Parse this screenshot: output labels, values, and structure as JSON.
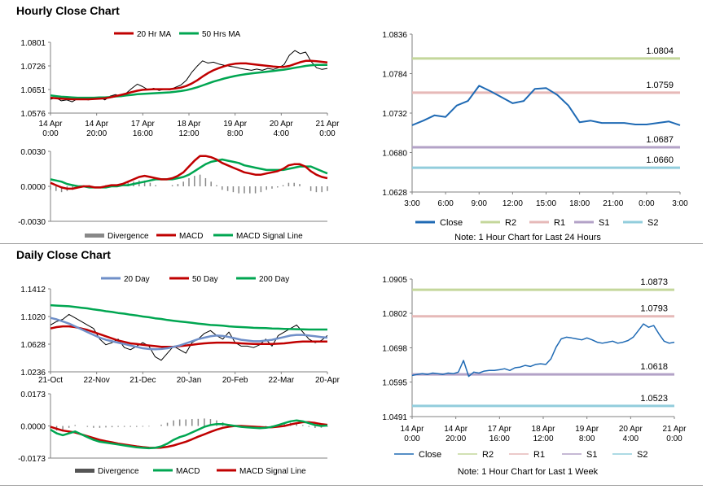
{
  "sections": {
    "hourly_title": "Hourly Close Chart",
    "daily_title": "Daily Close Chart"
  },
  "colors": {
    "ma20": "#c00000",
    "ma50": "#00a651",
    "close": "#1f6ab4",
    "r2": "#c4d79b",
    "r1": "#e6b9b8",
    "s1": "#b3a2c7",
    "s2": "#92cddc",
    "divergence": "#888888",
    "price": "#000000"
  },
  "chart_data": [
    {
      "id": "hourly-price",
      "type": "line",
      "legend": [
        "20 Hr MA",
        "50 Hrs MA"
      ],
      "x_ticks": [
        "14 Apr|0:00",
        "14 Apr|20:00",
        "17 Apr|16:00",
        "18 Apr|12:00",
        "19 Apr|8:00",
        "20 Apr|4:00",
        "21 Apr|0:00"
      ],
      "y_ticks": [
        "1.0801",
        "1.0726",
        "1.0651",
        "1.0576"
      ],
      "ylim": [
        1.0576,
        1.0801
      ],
      "price": [
        1.062,
        1.0625,
        1.0615,
        1.0618,
        1.0612,
        1.0622,
        1.062,
        1.0618,
        1.0622,
        1.0627,
        1.0618,
        1.063,
        1.0635,
        1.0628,
        1.064,
        1.0655,
        1.0668,
        1.066,
        1.065,
        1.0655,
        1.0648,
        1.0652,
        1.065,
        1.0658,
        1.0665,
        1.068,
        1.0705,
        1.0725,
        1.0742,
        1.0735,
        1.0738,
        1.0732,
        1.0728,
        1.0725,
        1.0722,
        1.0718,
        1.0715,
        1.0712,
        1.0716,
        1.0712,
        1.0718,
        1.0715,
        1.072,
        1.073,
        1.076,
        1.0775,
        1.0765,
        1.077,
        1.074,
        1.072,
        1.0715,
        1.0718
      ],
      "ma20": [
        1.0625,
        1.0623,
        1.0622,
        1.0621,
        1.062,
        1.062,
        1.062,
        1.062,
        1.0621,
        1.0622,
        1.0623,
        1.0626,
        1.063,
        1.0634,
        1.0638,
        1.0643,
        1.0647,
        1.065,
        1.0651,
        1.0652,
        1.0652,
        1.0652,
        1.0652,
        1.0654,
        1.0657,
        1.0662,
        1.067,
        1.068,
        1.0692,
        1.0703,
        1.0712,
        1.0719,
        1.0725,
        1.073,
        1.0733,
        1.0734,
        1.0734,
        1.0732,
        1.073,
        1.0728,
        1.0726,
        1.0724,
        1.0723,
        1.0723,
        1.0726,
        1.0732,
        1.0738,
        1.0742,
        1.0742,
        1.0741,
        1.0739,
        1.0737
      ],
      "ma50": [
        1.0632,
        1.063,
        1.0628,
        1.0627,
        1.0626,
        1.0625,
        1.0625,
        1.0625,
        1.0625,
        1.0626,
        1.0626,
        1.0627,
        1.0629,
        1.063,
        1.0632,
        1.0634,
        1.0636,
        1.0637,
        1.0638,
        1.0639,
        1.064,
        1.0641,
        1.0642,
        1.0644,
        1.0646,
        1.0649,
        1.0653,
        1.0658,
        1.0664,
        1.067,
        1.0676,
        1.0681,
        1.0686,
        1.069,
        1.0694,
        1.0697,
        1.07,
        1.0702,
        1.0704,
        1.0706,
        1.0708,
        1.071,
        1.0712,
        1.0714,
        1.0717,
        1.072,
        1.0723,
        1.0726,
        1.0728,
        1.0729,
        1.0729,
        1.0729
      ]
    },
    {
      "id": "hourly-macd",
      "type": "line",
      "legend": [
        "Divergence",
        "MACD",
        "MACD Signal Line"
      ],
      "y_ticks": [
        "0.0030",
        "0.0000",
        "-0.0030"
      ],
      "ylim": [
        -0.003,
        0.003
      ],
      "macd": [
        0.0003,
        0.0001,
        -0.0001,
        -0.0002,
        -0.0002,
        -0.0001,
        0.0,
        0.0,
        -0.0001,
        -0.0001,
        0.0,
        0.0001,
        0.0001,
        0.0002,
        0.0004,
        0.0006,
        0.0008,
        0.0009,
        0.0008,
        0.0007,
        0.0006,
        0.0006,
        0.0007,
        0.0009,
        0.0012,
        0.0017,
        0.0022,
        0.0026,
        0.0026,
        0.0025,
        0.0023,
        0.002,
        0.0018,
        0.0016,
        0.0014,
        0.0012,
        0.0011,
        0.001,
        0.001,
        0.0011,
        0.0012,
        0.0013,
        0.0015,
        0.0018,
        0.0019,
        0.0019,
        0.0017,
        0.0013,
        0.001,
        0.0008,
        0.0007
      ],
      "signal": [
        0.0006,
        0.0005,
        0.0004,
        0.0002,
        0.0001,
        0.0,
        0.0,
        -0.0001,
        -0.0001,
        -0.0001,
        -0.0001,
        0.0,
        0.0,
        0.0001,
        0.0001,
        0.0002,
        0.0003,
        0.0004,
        0.0005,
        0.0006,
        0.0006,
        0.0006,
        0.0006,
        0.0007,
        0.0008,
        0.001,
        0.0013,
        0.0016,
        0.0019,
        0.0021,
        0.0022,
        0.0023,
        0.0022,
        0.0021,
        0.002,
        0.0018,
        0.0017,
        0.0016,
        0.0015,
        0.0014,
        0.0014,
        0.0014,
        0.0014,
        0.0015,
        0.0016,
        0.0017,
        0.0017,
        0.0017,
        0.0015,
        0.0013,
        0.0011
      ]
    },
    {
      "id": "hourly-pivot",
      "type": "line",
      "note": "Note: 1 Hour Chart for Last 24 Hours",
      "legend": [
        "Close",
        "R2",
        "R1",
        "S1",
        "S2"
      ],
      "categories": [
        "3:00",
        "6:00",
        "9:00",
        "12:00",
        "15:00",
        "18:00",
        "21:00",
        "0:00",
        "3:00"
      ],
      "y_ticks": [
        "1.0836",
        "1.0784",
        "1.0732",
        "1.0680",
        "1.0628"
      ],
      "ylim": [
        1.0628,
        1.0836
      ],
      "levels": {
        "R2": 1.0804,
        "R1": 1.0759,
        "S1": 1.0687,
        "S2": 1.066
      },
      "level_labels": {
        "R2": "1.0804",
        "R1": "1.0759",
        "S1": "1.0687",
        "S2": "1.0660"
      },
      "close": [
        1.0716,
        1.0722,
        1.0729,
        1.0727,
        1.0742,
        1.0748,
        1.0768,
        1.0761,
        1.0753,
        1.0745,
        1.0748,
        1.0764,
        1.0765,
        1.0756,
        1.0742,
        1.072,
        1.0722,
        1.0719,
        1.0719,
        1.0719,
        1.0717,
        1.0717,
        1.0719,
        1.0721,
        1.0716
      ]
    },
    {
      "id": "daily-price",
      "type": "line",
      "legend": [
        "20 Day",
        "50 Day",
        "200 Day"
      ],
      "x_ticks": [
        "21-Oct",
        "22-Nov",
        "21-Dec",
        "20-Jan",
        "20-Feb",
        "22-Mar",
        "20-Apr"
      ],
      "y_ticks": [
        "1.1412",
        "1.1020",
        "1.0628",
        "1.0236"
      ],
      "ylim": [
        1.0236,
        1.1412
      ],
      "price": [
        1.09,
        1.095,
        1.098,
        1.105,
        1.1,
        1.095,
        1.09,
        1.085,
        1.07,
        1.062,
        1.065,
        1.07,
        1.058,
        1.055,
        1.06,
        1.065,
        1.06,
        1.045,
        1.04,
        1.05,
        1.06,
        1.055,
        1.05,
        1.065,
        1.07,
        1.078,
        1.082,
        1.075,
        1.07,
        1.08,
        1.065,
        1.06,
        1.06,
        1.058,
        1.062,
        1.07,
        1.06,
        1.075,
        1.08,
        1.085,
        1.09,
        1.08,
        1.07,
        1.065,
        1.068,
        1.075
      ],
      "ma20": [
        1.1,
        1.098,
        1.095,
        1.092,
        1.088,
        1.084,
        1.08,
        1.076,
        1.072,
        1.069,
        1.067,
        1.065,
        1.063,
        1.061,
        1.059,
        1.057,
        1.056,
        1.0555,
        1.056,
        1.057,
        1.059,
        1.061,
        1.064,
        1.067,
        1.07,
        1.072,
        1.074,
        1.075,
        1.0745,
        1.073,
        1.071,
        1.069,
        1.068,
        1.067,
        1.067,
        1.068,
        1.069,
        1.071,
        1.073,
        1.075,
        1.076,
        1.076,
        1.075,
        1.074,
        1.073,
        1.072
      ],
      "ma50": [
        1.085,
        1.087,
        1.088,
        1.088,
        1.087,
        1.085,
        1.083,
        1.08,
        1.077,
        1.074,
        1.071,
        1.068,
        1.066,
        1.064,
        1.063,
        1.062,
        1.061,
        1.06,
        1.059,
        1.059,
        1.059,
        1.06,
        1.061,
        1.062,
        1.063,
        1.064,
        1.0645,
        1.065,
        1.065,
        1.065,
        1.0645,
        1.064,
        1.0635,
        1.063,
        1.063,
        1.063,
        1.063,
        1.0635,
        1.064,
        1.065,
        1.066,
        1.0665,
        1.0665,
        1.0665,
        1.0665,
        1.0665
      ],
      "ma200": [
        1.118,
        1.1175,
        1.117,
        1.1165,
        1.1155,
        1.1145,
        1.1135,
        1.112,
        1.111,
        1.1095,
        1.1085,
        1.107,
        1.106,
        1.1045,
        1.1035,
        1.102,
        1.101,
        1.0995,
        1.0985,
        1.097,
        1.096,
        1.095,
        1.094,
        1.093,
        1.092,
        1.091,
        1.09,
        1.0895,
        1.089,
        1.088,
        1.0875,
        1.087,
        1.0865,
        1.086,
        1.0858,
        1.0855,
        1.085,
        1.0848,
        1.0845,
        1.0842,
        1.084,
        1.0838,
        1.0836,
        1.0835,
        1.0835,
        1.0835
      ]
    },
    {
      "id": "daily-macd",
      "type": "line",
      "legend": [
        "Divergence",
        "MACD",
        "MACD Signal Line"
      ],
      "y_ticks": [
        "0.0173",
        "0.0000",
        "-0.0173"
      ],
      "ylim": [
        -0.0173,
        0.0173
      ],
      "macd": [
        -0.002,
        -0.004,
        -0.005,
        -0.004,
        -0.003,
        -0.0045,
        -0.006,
        -0.0075,
        -0.0085,
        -0.009,
        -0.0095,
        -0.01,
        -0.0105,
        -0.011,
        -0.0115,
        -0.0118,
        -0.012,
        -0.0118,
        -0.011,
        -0.0095,
        -0.0075,
        -0.006,
        -0.005,
        -0.0035,
        -0.002,
        -0.0005,
        0.0005,
        0.001,
        0.001,
        0.0005,
        0.0,
        -0.0005,
        -0.0008,
        -0.001,
        -0.0012,
        -0.001,
        -0.0005,
        0.0005,
        0.0015,
        0.0025,
        0.003,
        0.0025,
        0.0015,
        0.0005,
        0.0,
        0.0002
      ],
      "signal": [
        -0.0005,
        -0.0015,
        -0.0025,
        -0.003,
        -0.0035,
        -0.0045,
        -0.0055,
        -0.0065,
        -0.0075,
        -0.0082,
        -0.0088,
        -0.0095,
        -0.01,
        -0.0105,
        -0.011,
        -0.0114,
        -0.0117,
        -0.0118,
        -0.0117,
        -0.0112,
        -0.0105,
        -0.0095,
        -0.0085,
        -0.0072,
        -0.0058,
        -0.0045,
        -0.0032,
        -0.002,
        -0.001,
        -0.0004,
        0.0,
        0.0,
        -0.0002,
        -0.0004,
        -0.0006,
        -0.0008,
        -0.0007,
        -0.0004,
        0.0,
        0.0008,
        0.0015,
        0.002,
        0.002,
        0.0016,
        0.001,
        0.0006
      ]
    },
    {
      "id": "daily-pivot",
      "type": "line",
      "note": "Note: 1 Hour Chart for Last 1 Week",
      "legend": [
        "Close",
        "R2",
        "R1",
        "S1",
        "S2"
      ],
      "x_ticks": [
        "14 Apr|0:00",
        "14 Apr|20:00",
        "17 Apr|16:00",
        "18 Apr|12:00",
        "19 Apr|8:00",
        "20 Apr|4:00",
        "21 Apr|0:00"
      ],
      "y_ticks": [
        "1.0905",
        "1.0802",
        "1.0698",
        "1.0595",
        "1.0491"
      ],
      "ylim": [
        1.0491,
        1.0905
      ],
      "levels": {
        "R2": 1.0873,
        "R1": 1.0793,
        "S1": 1.0618,
        "S2": 1.0523
      },
      "level_labels": {
        "R2": "1.0873",
        "R1": "1.0793",
        "S1": "1.0618",
        "S2": "1.0523"
      },
      "close": [
        1.0615,
        1.0618,
        1.062,
        1.0618,
        1.0622,
        1.062,
        1.0618,
        1.0622,
        1.062,
        1.0625,
        1.066,
        1.0612,
        1.0625,
        1.0622,
        1.0628,
        1.063,
        1.063,
        1.0632,
        1.0635,
        1.063,
        1.0638,
        1.064,
        1.0645,
        1.0642,
        1.0648,
        1.065,
        1.0648,
        1.0665,
        1.07,
        1.0725,
        1.073,
        1.0728,
        1.0725,
        1.0722,
        1.0728,
        1.0722,
        1.0715,
        1.0712,
        1.0715,
        1.0718,
        1.0712,
        1.0715,
        1.072,
        1.073,
        1.075,
        1.077,
        1.076,
        1.0765,
        1.074,
        1.0718,
        1.0712,
        1.0715
      ]
    }
  ]
}
